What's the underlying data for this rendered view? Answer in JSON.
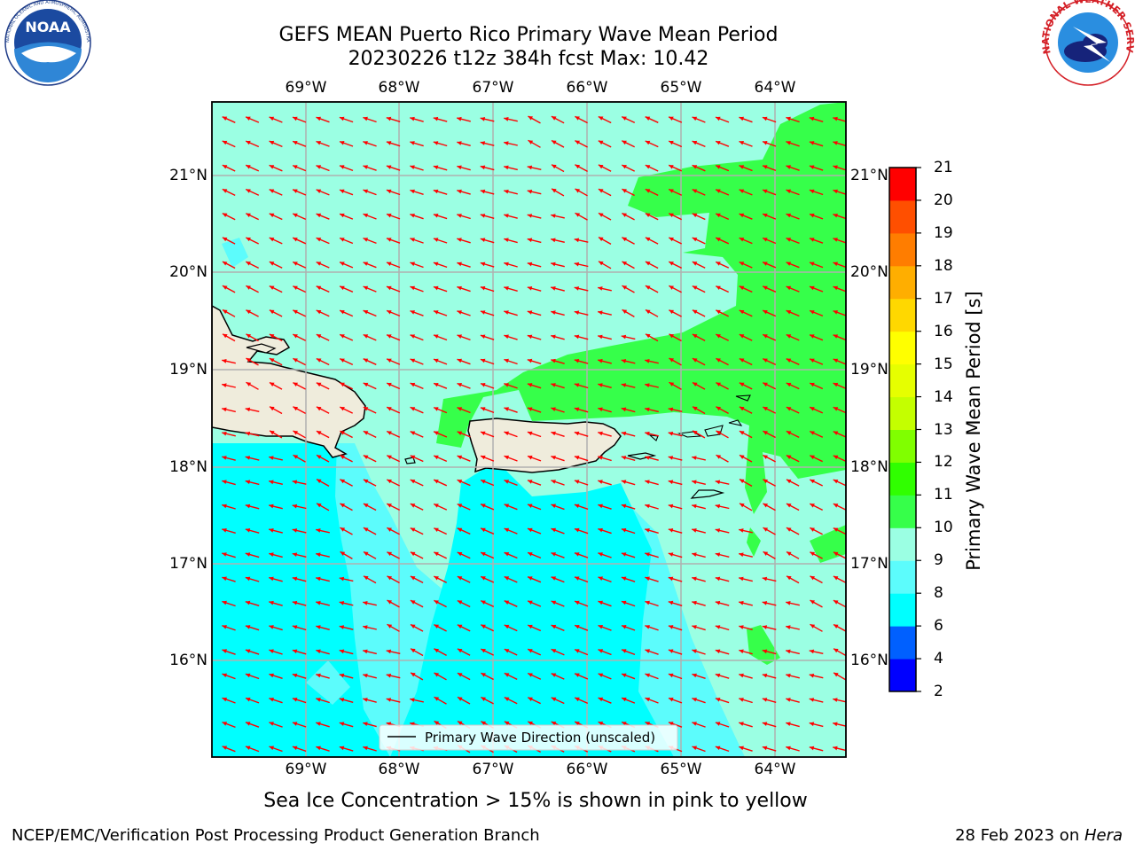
{
  "header": {
    "title_line1": "GEFS MEAN Puerto Rico Primary Wave Mean Period",
    "title_line2": "20230226 t12z 384h fcst   Max: 10.42"
  },
  "logos": {
    "noaa": "NOAA",
    "noaa_ring": "NATIONAL OCEANIC AND ATMOSPHERIC ADMINISTRATION · U.S. DEPARTMENT OF COMMERCE",
    "nws_ring": "NATIONAL WEATHER SERVICE"
  },
  "map": {
    "lon_labels": [
      "69°W",
      "68°W",
      "67°W",
      "66°W",
      "65°W",
      "64°W"
    ],
    "lat_labels": [
      "21°N",
      "20°N",
      "19°N",
      "18°N",
      "17°N",
      "16°N"
    ],
    "legend_label": "Primary Wave Direction (unscaled)",
    "colors": {
      "land": "#efecdc",
      "gridline": "#b0b0b0",
      "arrow": "#ff0000",
      "band_6_8": "#00ffff",
      "band_8_9": "#5cfcfc",
      "band_9_10": "#9bffe3",
      "band_10_11": "#36ff4a"
    },
    "wave_direction": "arrows point toward west-northwest across the domain"
  },
  "colorbar": {
    "title": "Primary Wave Mean Period [s]",
    "levels": [
      2,
      4,
      6,
      8,
      9,
      10,
      11,
      12,
      13,
      14,
      15,
      16,
      17,
      18,
      19,
      20,
      21
    ],
    "colors": [
      "#0000ff",
      "#0060ff",
      "#00ffff",
      "#5cfcfc",
      "#9bffe3",
      "#36ff4a",
      "#30ff00",
      "#80ff00",
      "#c4ff00",
      "#e6ff00",
      "#ffff00",
      "#ffd800",
      "#ffae00",
      "#ff7d00",
      "#ff4f00",
      "#ff0000"
    ]
  },
  "footer": {
    "note": "Sea Ice Concentration > 15% is shown in pink to yellow",
    "credit_left": "NCEP/EMC/Verification Post Processing Product Generation Branch",
    "credit_date": "28 Feb 2023 on ",
    "credit_machine": "Hera"
  }
}
